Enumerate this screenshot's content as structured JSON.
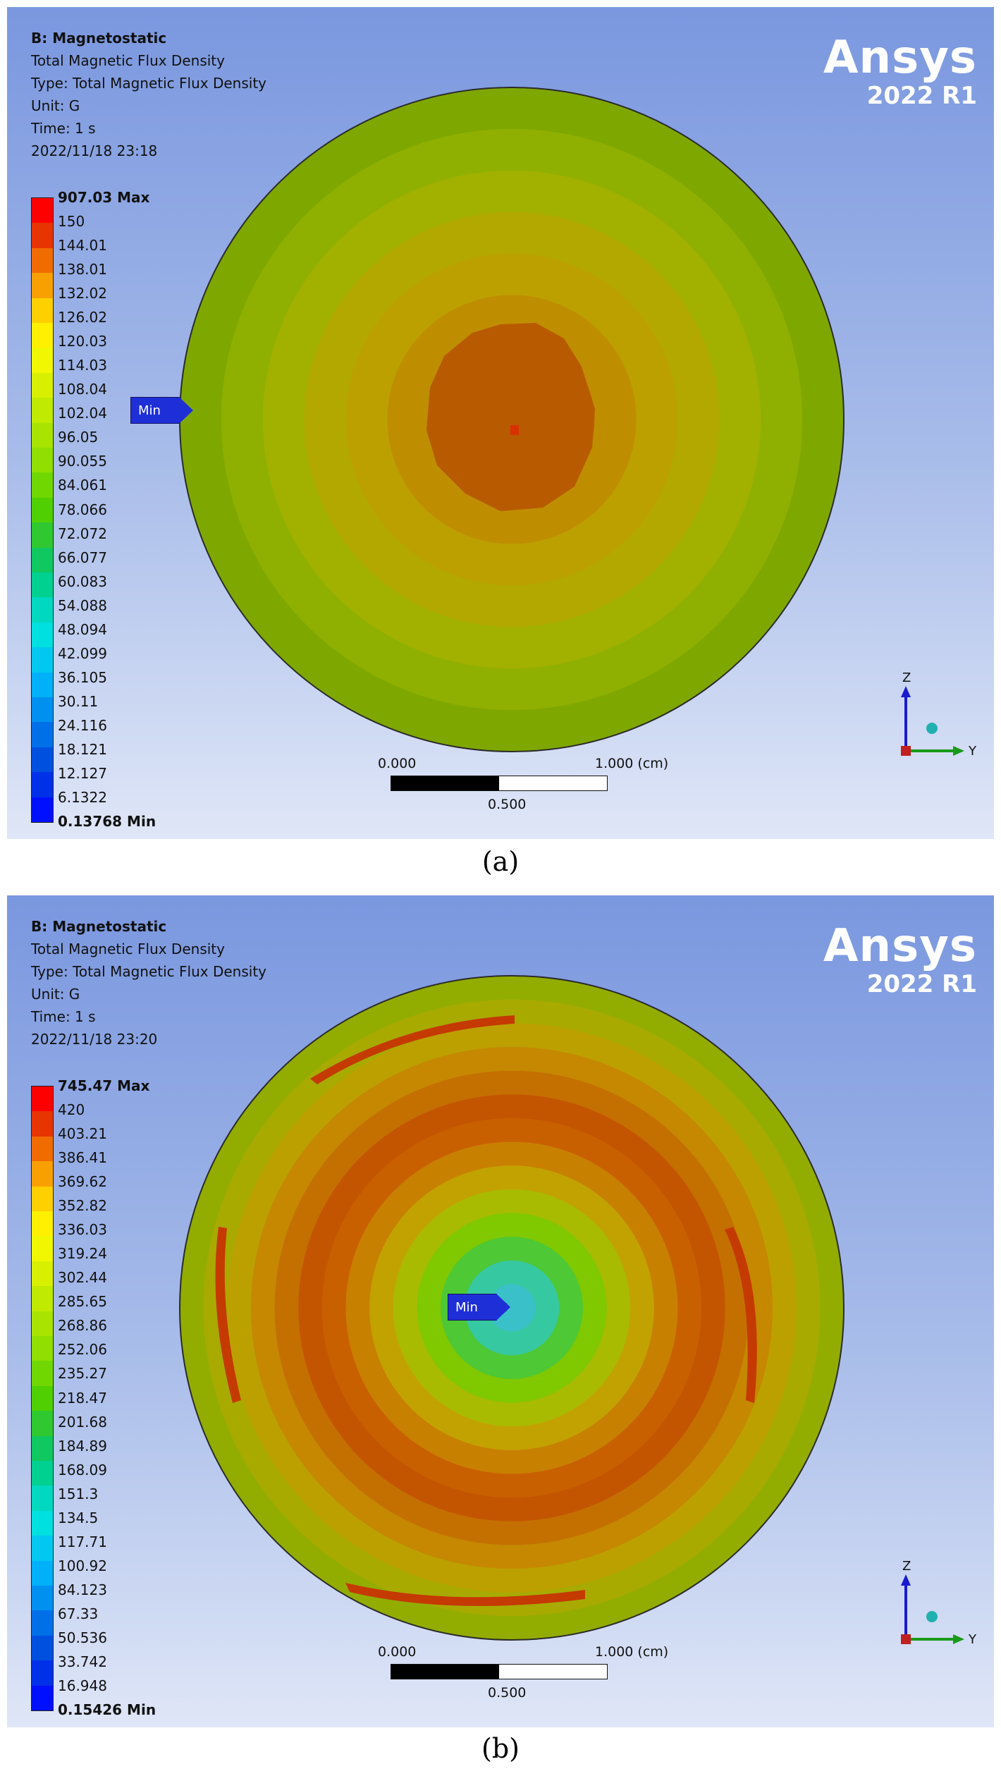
{
  "panels": [
    {
      "id": "a",
      "caption": "(a)",
      "header": {
        "title": "B: Magnetostatic",
        "result": "Total Magnetic Flux Density",
        "type": "Type: Total Magnetic Flux Density",
        "unit": "Unit: G",
        "time": "Time: 1 s",
        "date": "2022/11/18 23:18"
      },
      "legend": [
        "907.03 Max",
        "150",
        "144.01",
        "138.01",
        "132.02",
        "126.02",
        "120.03",
        "114.03",
        "108.04",
        "102.04",
        "96.05",
        "90.055",
        "84.061",
        "78.066",
        "72.072",
        "66.077",
        "60.083",
        "54.088",
        "48.094",
        "42.099",
        "36.105",
        "30.11",
        "24.116",
        "18.121",
        "12.127",
        "6.1322",
        "0.13768 Min"
      ],
      "probe": "Min",
      "scale": {
        "left": "0.000",
        "right": "1.000 (cm)",
        "mid": "0.500"
      }
    },
    {
      "id": "b",
      "caption": "(b)",
      "header": {
        "title": "B: Magnetostatic",
        "result": "Total Magnetic Flux Density",
        "type": "Type: Total Magnetic Flux Density",
        "unit": "Unit: G",
        "time": "Time: 1 s",
        "date": "2022/11/18 23:20"
      },
      "legend": [
        "745.47 Max",
        "420",
        "403.21",
        "386.41",
        "369.62",
        "352.82",
        "336.03",
        "319.24",
        "302.44",
        "285.65",
        "268.86",
        "252.06",
        "235.27",
        "218.47",
        "201.68",
        "184.89",
        "168.09",
        "151.3",
        "134.5",
        "117.71",
        "100.92",
        "84.123",
        "67.33",
        "50.536",
        "33.742",
        "16.948",
        "0.15426 Min"
      ],
      "probe": "Min",
      "scale": {
        "left": "0.000",
        "right": "1.000 (cm)",
        "mid": "0.500"
      }
    }
  ],
  "logo": {
    "name": "Ansys",
    "version": "2022 R1"
  },
  "axes": {
    "z": "Z",
    "y": "Y"
  },
  "colors": {
    "legend": [
      "#ff0000",
      "#e83400",
      "#f06c00",
      "#f7a000",
      "#ffd000",
      "#fff000",
      "#f0f700",
      "#d8f000",
      "#c0ea00",
      "#a8e400",
      "#90df00",
      "#70d800",
      "#50d000",
      "#30c830",
      "#10c860",
      "#00d090",
      "#00d8c0",
      "#00e0e0",
      "#00c8f0",
      "#00b0f8",
      "#0090f0",
      "#0070e8",
      "#0050e0",
      "#0030e8",
      "#0010ff"
    ],
    "ring_a": [
      "#7ea800",
      "#8fb000",
      "#a2b000",
      "#b2a800",
      "#bca000",
      "#bf8e00",
      "#bc7400",
      "#b85a00"
    ],
    "ring_b": [
      "#92ad00",
      "#a8aa00",
      "#bca000",
      "#c58800",
      "#c47000",
      "#c45500",
      "#c96000",
      "#c88000",
      "#c2a200",
      "#a8bb00",
      "#80c800",
      "#4ec834",
      "#36c8a0",
      "#3ac0c8"
    ]
  }
}
